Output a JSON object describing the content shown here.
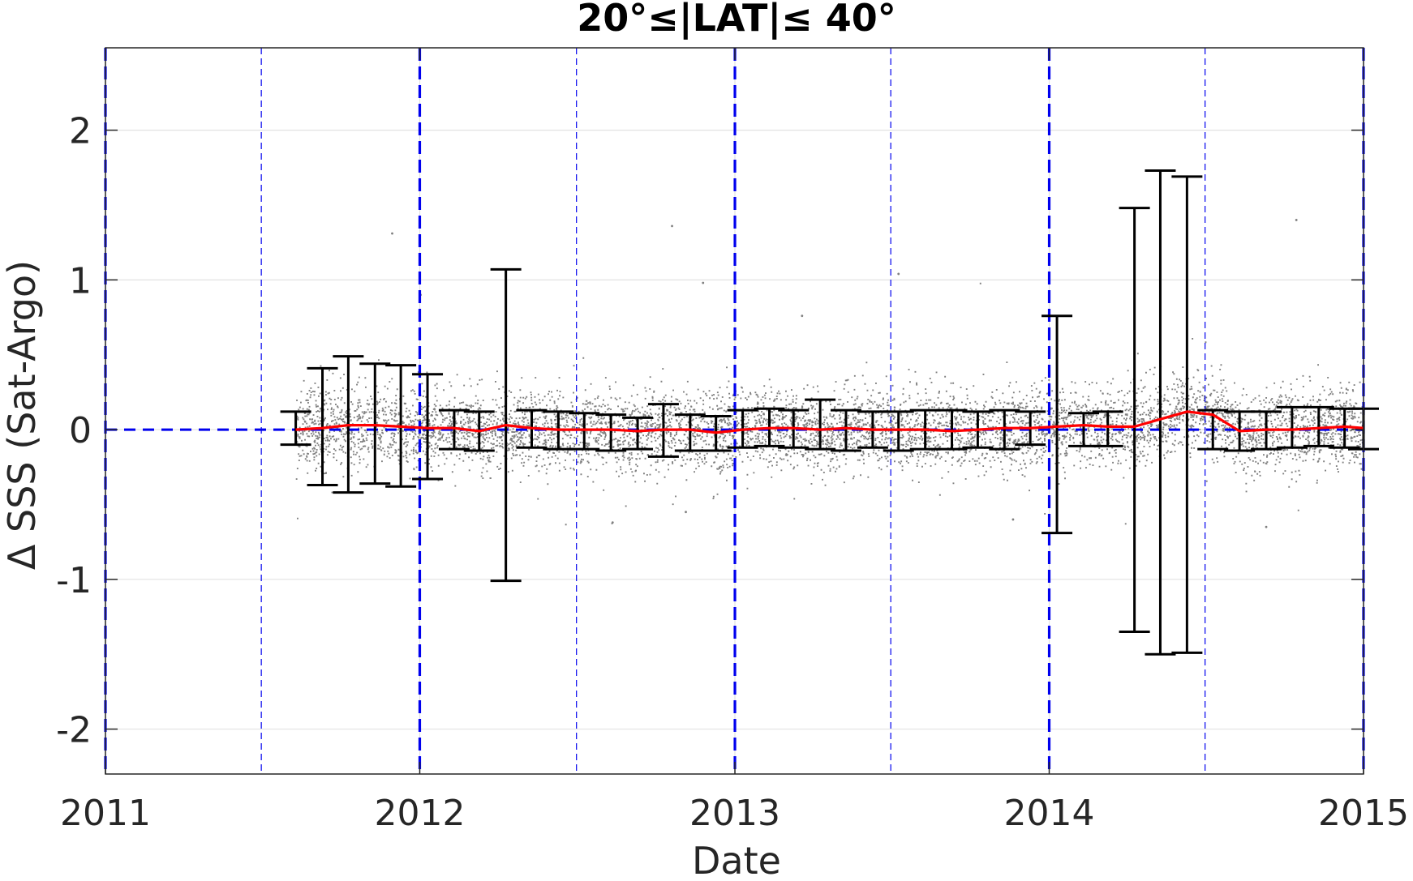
{
  "chart_data": {
    "type": "scatter",
    "title": "20°≤|LAT|≤ 40°",
    "xlabel": "Date",
    "ylabel": "Δ SSS (Sat-Argo)",
    "xlim": [
      "2011-01-01",
      "2015-01-01"
    ],
    "ylim": [
      -2.3,
      2.55
    ],
    "xticks": [
      "2011",
      "2012",
      "2013",
      "2014",
      "2015"
    ],
    "yticks": [
      -2,
      -1,
      0,
      1,
      2
    ],
    "grid": true,
    "zero_line": {
      "y": 0,
      "style": "dashed",
      "color": "#0000ee"
    },
    "year_lines": {
      "dates": [
        "2011-01-01",
        "2012-01-01",
        "2013-01-01",
        "2014-01-01",
        "2015-01-01"
      ],
      "style": "dashed-thick",
      "color": "#0000ee"
    },
    "half_year_lines": {
      "dates": [
        "2011-07-01",
        "2012-07-01",
        "2013-07-01",
        "2014-07-01"
      ],
      "style": "dashed-thin",
      "color": "#0000ee"
    },
    "scatter": {
      "color": "#808080",
      "x_range": [
        "2011-08-10",
        "2015-01-01"
      ],
      "typical_spread": 0.18,
      "outliers": [
        {
          "x": "2011-11-30",
          "y": 1.31
        },
        {
          "x": "2012-01-02",
          "y": 0.9
        },
        {
          "x": "2012-10-20",
          "y": 1.36
        },
        {
          "x": "2012-11-25",
          "y": 0.98
        },
        {
          "x": "2013-07-10",
          "y": 1.04
        },
        {
          "x": "2014-10-15",
          "y": 1.4
        },
        {
          "x": "2012-08-12",
          "y": -0.62
        },
        {
          "x": "2014-09-10",
          "y": -0.65
        },
        {
          "x": "2013-03-20",
          "y": 0.76
        },
        {
          "x": "2012-11-05",
          "y": -0.55
        },
        {
          "x": "2013-11-20",
          "y": -0.6
        }
      ]
    },
    "mean_line": {
      "color": "#ff0000",
      "x": [
        "2011-08-10",
        "2011-09-10",
        "2011-10-10",
        "2011-11-10",
        "2011-12-10",
        "2012-01-10",
        "2012-02-10",
        "2012-03-10",
        "2012-04-10",
        "2012-05-10",
        "2012-06-10",
        "2012-07-10",
        "2012-08-10",
        "2012-09-10",
        "2012-10-10",
        "2012-11-10",
        "2012-12-10",
        "2013-01-10",
        "2013-02-10",
        "2013-03-10",
        "2013-04-10",
        "2013-05-10",
        "2013-06-10",
        "2013-07-10",
        "2013-08-10",
        "2013-09-10",
        "2013-10-10",
        "2013-11-10",
        "2013-12-10",
        "2014-01-10",
        "2014-02-10",
        "2014-03-10",
        "2014-04-10",
        "2014-05-10",
        "2014-06-10",
        "2014-07-10",
        "2014-08-10",
        "2014-09-10",
        "2014-10-10",
        "2014-11-10",
        "2014-12-10",
        "2015-01-01"
      ],
      "y": [
        0.0,
        0.01,
        0.03,
        0.03,
        0.02,
        0.01,
        0.01,
        -0.01,
        0.03,
        0.01,
        0.0,
        0.0,
        0.0,
        -0.01,
        0.0,
        0.0,
        -0.02,
        0.0,
        0.01,
        0.01,
        0.0,
        0.01,
        0.0,
        0.0,
        0.0,
        -0.01,
        0.0,
        0.01,
        0.01,
        0.02,
        0.03,
        0.02,
        0.02,
        0.07,
        0.12,
        0.1,
        -0.01,
        0.0,
        0.0,
        0.01,
        0.02,
        0.01
      ]
    },
    "error_bars": {
      "color": "#000000",
      "x": [
        "2011-08-10",
        "2011-09-10",
        "2011-10-10",
        "2011-11-10",
        "2011-12-10",
        "2012-01-10",
        "2012-02-10",
        "2012-03-10",
        "2012-04-10",
        "2012-05-10",
        "2012-06-10",
        "2012-07-10",
        "2012-08-10",
        "2012-09-10",
        "2012-10-10",
        "2012-11-10",
        "2012-12-10",
        "2013-01-10",
        "2013-02-10",
        "2013-03-10",
        "2013-04-10",
        "2013-05-10",
        "2013-06-10",
        "2013-07-10",
        "2013-08-10",
        "2013-09-10",
        "2013-10-10",
        "2013-11-10",
        "2013-12-10",
        "2014-01-10",
        "2014-02-10",
        "2014-03-10",
        "2014-04-10",
        "2014-05-10",
        "2014-06-10",
        "2014-07-10",
        "2014-08-10",
        "2014-09-10",
        "2014-10-10",
        "2014-11-10",
        "2014-12-10",
        "2015-01-01"
      ],
      "low": [
        -0.1,
        -0.37,
        -0.42,
        -0.36,
        -0.38,
        -0.33,
        -0.13,
        -0.14,
        -1.01,
        -0.12,
        -0.13,
        -0.13,
        -0.14,
        -0.13,
        -0.18,
        -0.14,
        -0.14,
        -0.12,
        -0.11,
        -0.12,
        -0.13,
        -0.14,
        -0.12,
        -0.14,
        -0.13,
        -0.13,
        -0.12,
        -0.13,
        -0.1,
        -0.69,
        -0.11,
        -0.11,
        -1.35,
        -1.5,
        -1.49,
        -0.13,
        -0.14,
        -0.13,
        -0.12,
        -0.11,
        -0.12,
        -0.13
      ],
      "high": [
        0.12,
        0.41,
        0.49,
        0.44,
        0.43,
        0.37,
        0.13,
        0.12,
        1.07,
        0.13,
        0.12,
        0.11,
        0.1,
        0.08,
        0.17,
        0.1,
        0.09,
        0.13,
        0.14,
        0.13,
        0.2,
        0.13,
        0.12,
        0.12,
        0.13,
        0.13,
        0.12,
        0.13,
        0.12,
        0.76,
        0.11,
        0.12,
        1.48,
        1.73,
        1.69,
        0.13,
        0.12,
        0.12,
        0.15,
        0.15,
        0.14,
        0.14
      ]
    }
  }
}
